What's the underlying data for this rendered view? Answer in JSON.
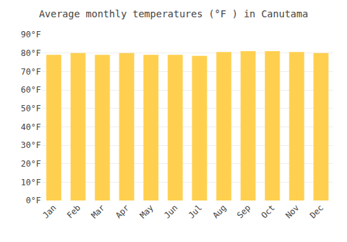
{
  "chart_data": {
    "type": "bar",
    "title": "Average monthly temperatures (°F ) in Canutama",
    "categories": [
      "Jan",
      "Feb",
      "Mar",
      "Apr",
      "May",
      "Jun",
      "Jul",
      "Aug",
      "Sep",
      "Oct",
      "Nov",
      "Dec"
    ],
    "values": [
      79,
      80,
      79,
      80,
      79,
      79,
      78.5,
      80.5,
      81,
      81,
      80.5,
      80
    ],
    "color": "#FFD050",
    "ylim": [
      0,
      90
    ],
    "yticks": [
      {
        "value": 0,
        "label": "0°F"
      },
      {
        "value": 10,
        "label": "10°F"
      },
      {
        "value": 20,
        "label": "20°F"
      },
      {
        "value": 30,
        "label": "30°F"
      },
      {
        "value": 40,
        "label": "40°F"
      },
      {
        "value": 50,
        "label": "50°F"
      },
      {
        "value": 60,
        "label": "60°F"
      },
      {
        "value": 70,
        "label": "70°F"
      },
      {
        "value": 80,
        "label": "80°F"
      },
      {
        "value": 90,
        "label": "90°F"
      }
    ],
    "grid": true
  }
}
